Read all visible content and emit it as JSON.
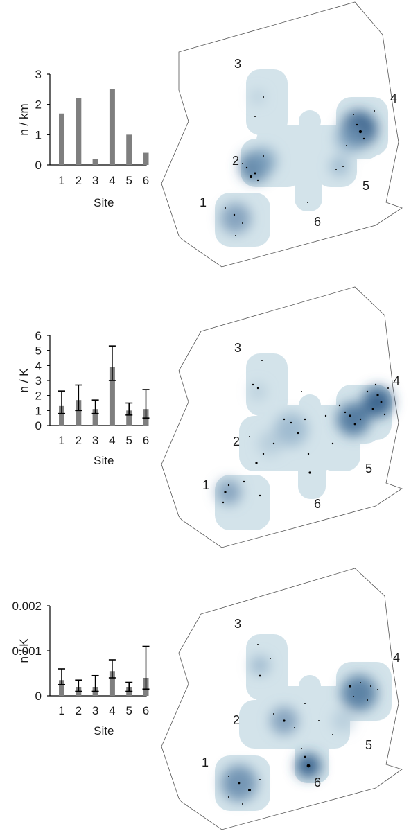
{
  "colors": {
    "bar": "#7f7f7f",
    "error_bar": "#000000",
    "axis": "#000000",
    "map_outline": "#555555",
    "density_light": "#d3e3ea",
    "density_dark": "#2d5986",
    "points": "#000000"
  },
  "chart_data": [
    {
      "type": "bar",
      "categories": [
        "1",
        "2",
        "3",
        "4",
        "5",
        "6"
      ],
      "values": [
        1.7,
        2.2,
        0.2,
        2.5,
        1.0,
        0.4
      ],
      "ylim": [
        0,
        3
      ],
      "yticks": [
        "0",
        "1",
        "2",
        "3"
      ],
      "xlabel": "Site",
      "ylabel": "n / km",
      "map_labels": [
        "1",
        "2",
        "3",
        "4",
        "5",
        "6"
      ]
    },
    {
      "type": "bar",
      "categories": [
        "1",
        "2",
        "3",
        "4",
        "5",
        "6"
      ],
      "values": [
        1.3,
        1.7,
        1.1,
        3.9,
        1.0,
        1.1
      ],
      "error_low": [
        0.8,
        1.0,
        0.8,
        3.0,
        0.7,
        0.5
      ],
      "error_high": [
        2.3,
        2.7,
        1.7,
        5.3,
        1.5,
        2.4
      ],
      "ylim": [
        0,
        6
      ],
      "yticks": [
        "0",
        "1",
        "2",
        "3",
        "4",
        "5",
        "6"
      ],
      "xlabel": "Site",
      "ylabel": "n / K",
      "map_labels": [
        "1",
        "2",
        "3",
        "4",
        "5",
        "6"
      ]
    },
    {
      "type": "bar",
      "categories": [
        "1",
        "2",
        "3",
        "4",
        "5",
        "6"
      ],
      "values": [
        0.00035,
        0.0002,
        0.0002,
        0.00055,
        0.0002,
        0.0004
      ],
      "error_low": [
        0.00025,
        0.0001,
        0.0001,
        0.0004,
        0.0001,
        0.00015
      ],
      "error_high": [
        0.0006,
        0.00035,
        0.00045,
        0.0008,
        0.0003,
        0.0011
      ],
      "ylim": [
        0,
        0.002
      ],
      "yticks": [
        "0",
        "0.001",
        "0.002"
      ],
      "xlabel": "Site",
      "ylabel": "n / K",
      "map_labels": [
        "1",
        "2",
        "3",
        "4",
        "5",
        "6"
      ]
    }
  ]
}
